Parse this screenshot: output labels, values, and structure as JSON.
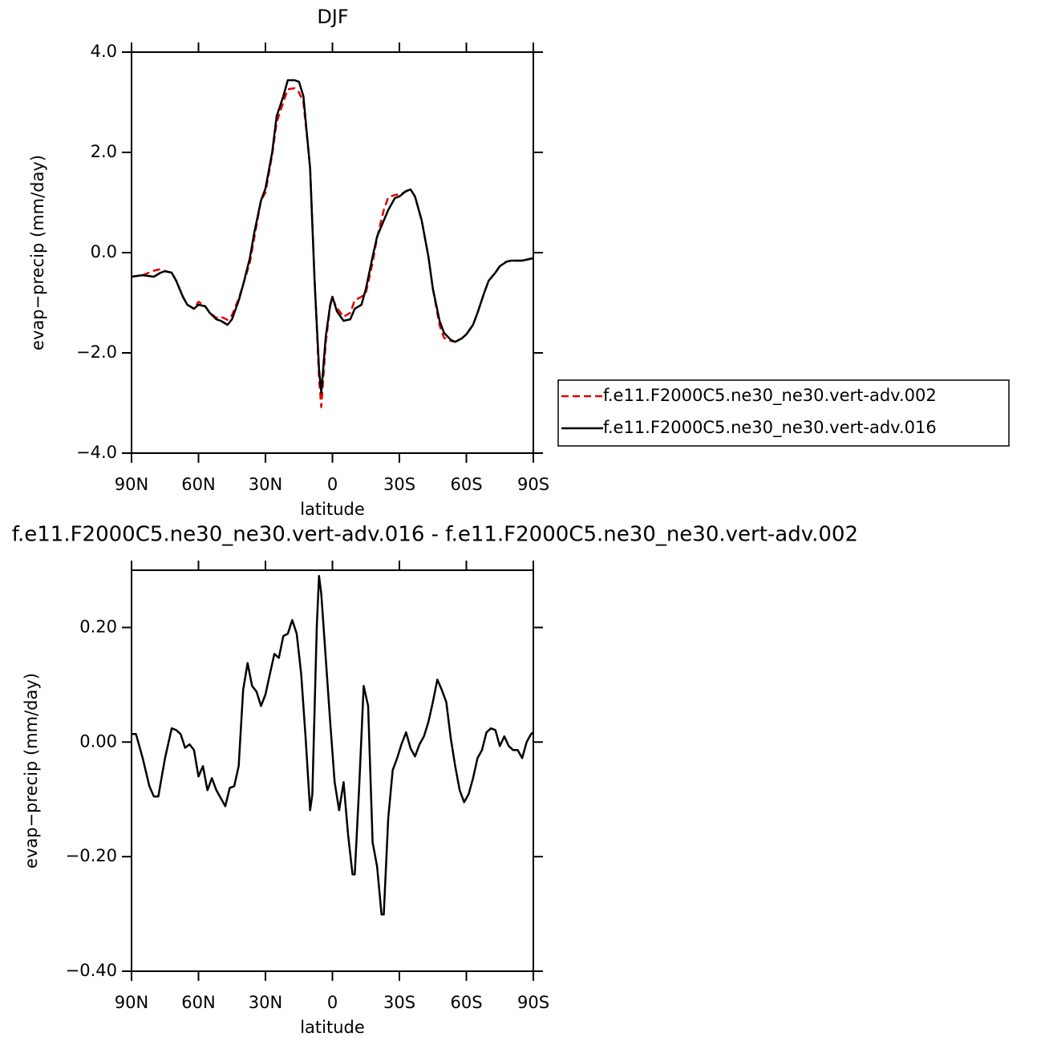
{
  "chart_data": [
    {
      "type": "line",
      "title": "DJF",
      "xlabel": "latitude",
      "ylabel": "evap−precip (mm/day)",
      "x": [
        90,
        85,
        80,
        77,
        75,
        72,
        70,
        67,
        65,
        62,
        60,
        57,
        55,
        52,
        50,
        47,
        45,
        42,
        40,
        37,
        35,
        32,
        30,
        27,
        25,
        22,
        20,
        17,
        15,
        13,
        10,
        8,
        6,
        5,
        3,
        1,
        0,
        -2,
        -5,
        -8,
        -10,
        -13,
        -15,
        -18,
        -20,
        -23,
        -25,
        -28,
        -30,
        -33,
        -35,
        -37,
        -40,
        -43,
        -45,
        -48,
        -50,
        -53,
        -55,
        -58,
        -60,
        -63,
        -65,
        -68,
        -70,
        -73,
        -75,
        -78,
        -80,
        -83,
        -85,
        -88,
        -90
      ],
      "series": [
        {
          "name": "f.e11.F2000C5.ne30_ne30.vert-adv.002",
          "color": "#e00000",
          "linestyle": "dashed",
          "values": [
            -0.48,
            -0.45,
            -0.36,
            -0.33,
            -0.37,
            -0.4,
            -0.56,
            -0.88,
            -1.04,
            -1.12,
            -0.98,
            -1.07,
            -1.2,
            -1.3,
            -1.28,
            -1.34,
            -1.25,
            -0.92,
            -0.64,
            -0.2,
            0.3,
            1.04,
            1.2,
            1.95,
            2.6,
            3.0,
            3.26,
            3.28,
            3.2,
            3.0,
            1.7,
            -0.5,
            -2.5,
            -3.08,
            -1.8,
            -1.06,
            -0.92,
            -1.1,
            -1.28,
            -1.2,
            -0.95,
            -0.88,
            -0.8,
            -0.2,
            0.3,
            0.85,
            1.1,
            1.15,
            1.16,
            1.22,
            1.26,
            1.12,
            0.64,
            -0.08,
            -0.72,
            -1.45,
            -1.7,
            -1.76,
            -1.78,
            -1.71,
            -1.63,
            -1.44,
            -1.2,
            -0.8,
            -0.56,
            -0.4,
            -0.27,
            -0.18,
            -0.16,
            -0.16,
            -0.16,
            -0.13,
            -0.11
          ]
        },
        {
          "name": "f.e11.F2000C5.ne30_ne30.vert-adv.016",
          "color": "#000000",
          "linestyle": "solid",
          "values": [
            -0.48,
            -0.45,
            -0.48,
            -0.4,
            -0.37,
            -0.4,
            -0.56,
            -0.88,
            -1.04,
            -1.12,
            -1.04,
            -1.07,
            -1.2,
            -1.33,
            -1.36,
            -1.44,
            -1.33,
            -0.96,
            -0.64,
            -0.11,
            0.4,
            1.04,
            1.28,
            2.0,
            2.72,
            3.12,
            3.44,
            3.44,
            3.41,
            3.12,
            1.68,
            -0.56,
            -2.32,
            -2.8,
            -1.68,
            -1.04,
            -0.88,
            -1.17,
            -1.36,
            -1.33,
            -1.12,
            -1.04,
            -0.72,
            -0.08,
            0.32,
            0.64,
            0.85,
            1.09,
            1.12,
            1.23,
            1.26,
            1.12,
            0.64,
            -0.08,
            -0.72,
            -1.36,
            -1.6,
            -1.74,
            -1.78,
            -1.71,
            -1.63,
            -1.44,
            -1.2,
            -0.8,
            -0.56,
            -0.4,
            -0.27,
            -0.18,
            -0.16,
            -0.16,
            -0.16,
            -0.13,
            -0.11
          ]
        }
      ],
      "xlim": [
        90,
        -90
      ],
      "xticks": [
        {
          "value": 90,
          "label": "90N"
        },
        {
          "value": 60,
          "label": "60N"
        },
        {
          "value": 30,
          "label": "30N"
        },
        0,
        {
          "value": -30,
          "label": "30S"
        },
        {
          "value": -60,
          "label": "60S"
        },
        {
          "value": -90,
          "label": "90S"
        }
      ],
      "ylim": [
        -4,
        4
      ],
      "yticks": [
        {
          "value": 4,
          "label": "4.0"
        },
        {
          "value": 2,
          "label": "2.0"
        },
        {
          "value": 0,
          "label": "0.0"
        },
        {
          "value": -2,
          "label": "−2.0"
        },
        {
          "value": -4,
          "label": "−4.0"
        }
      ],
      "legend": "right"
    },
    {
      "type": "line",
      "title": "f.e11.F2000C5.ne30_ne30.vert-adv.016 - f.e11.F2000C5.ne30_ne30.vert-adv.002",
      "xlabel": "latitude",
      "ylabel": "evap−precip (mm/day)",
      "x": [
        90,
        88,
        85,
        82,
        80,
        78,
        75,
        72,
        70,
        68,
        66,
        64,
        62,
        60,
        58,
        56,
        54,
        52,
        50,
        48,
        46,
        44,
        42,
        40,
        38,
        36,
        34,
        32,
        30,
        28,
        26,
        24,
        22,
        20,
        18,
        16,
        14,
        12,
        10,
        9,
        7,
        6,
        5,
        3,
        1,
        -1,
        -3,
        -5,
        -7,
        -9,
        -10,
        -12,
        -14,
        -16,
        -18,
        -20,
        -22,
        -23,
        -25,
        -27,
        -29,
        -31,
        -33,
        -35,
        -37,
        -39,
        -41,
        -43,
        -45,
        -47,
        -49,
        -51,
        -53,
        -55,
        -57,
        -59,
        -61,
        -63,
        -65,
        -67,
        -69,
        -71,
        -73,
        -75,
        -77,
        -79,
        -81,
        -83,
        -85,
        -87,
        -89,
        -90
      ],
      "values": [
        0.014,
        0.014,
        -0.028,
        -0.077,
        -0.095,
        -0.095,
        -0.028,
        0.024,
        0.021,
        0.014,
        -0.01,
        -0.004,
        -0.014,
        -0.06,
        -0.042,
        -0.084,
        -0.063,
        -0.084,
        -0.098,
        -0.112,
        -0.08,
        -0.077,
        -0.042,
        0.091,
        0.138,
        0.098,
        0.088,
        0.063,
        0.083,
        0.119,
        0.154,
        0.147,
        0.185,
        0.189,
        0.213,
        0.189,
        0.119,
        0.007,
        -0.119,
        -0.091,
        0.203,
        0.29,
        0.259,
        0.147,
        0.035,
        -0.07,
        -0.119,
        -0.07,
        -0.161,
        -0.231,
        -0.231,
        -0.077,
        0.098,
        0.063,
        -0.175,
        -0.217,
        -0.301,
        -0.301,
        -0.133,
        -0.049,
        -0.028,
        -0.003,
        0.017,
        -0.011,
        -0.025,
        -0.004,
        0.01,
        0.035,
        0.07,
        0.109,
        0.091,
        0.07,
        0.007,
        -0.042,
        -0.084,
        -0.105,
        -0.091,
        -0.063,
        -0.028,
        -0.014,
        0.017,
        0.024,
        0.021,
        -0.007,
        0.01,
        -0.007,
        -0.014,
        -0.014,
        -0.028,
        0,
        0.014,
        0.017
      ],
      "color": "#000000",
      "xlim": [
        90,
        -90
      ],
      "xticks": [
        {
          "value": 90,
          "label": "90N"
        },
        {
          "value": 60,
          "label": "60N"
        },
        {
          "value": 30,
          "label": "30N"
        },
        0,
        {
          "value": -30,
          "label": "30S"
        },
        {
          "value": -60,
          "label": "60S"
        },
        {
          "value": -90,
          "label": "90S"
        }
      ],
      "ylim": [
        -0.4,
        0.3
      ],
      "yticks": [
        {
          "value": 0.2,
          "label": "0.20"
        },
        {
          "value": 0,
          "label": "0.00"
        },
        {
          "value": -0.2,
          "label": "−0.20"
        },
        {
          "value": -0.4,
          "label": "−0.40"
        }
      ]
    }
  ]
}
